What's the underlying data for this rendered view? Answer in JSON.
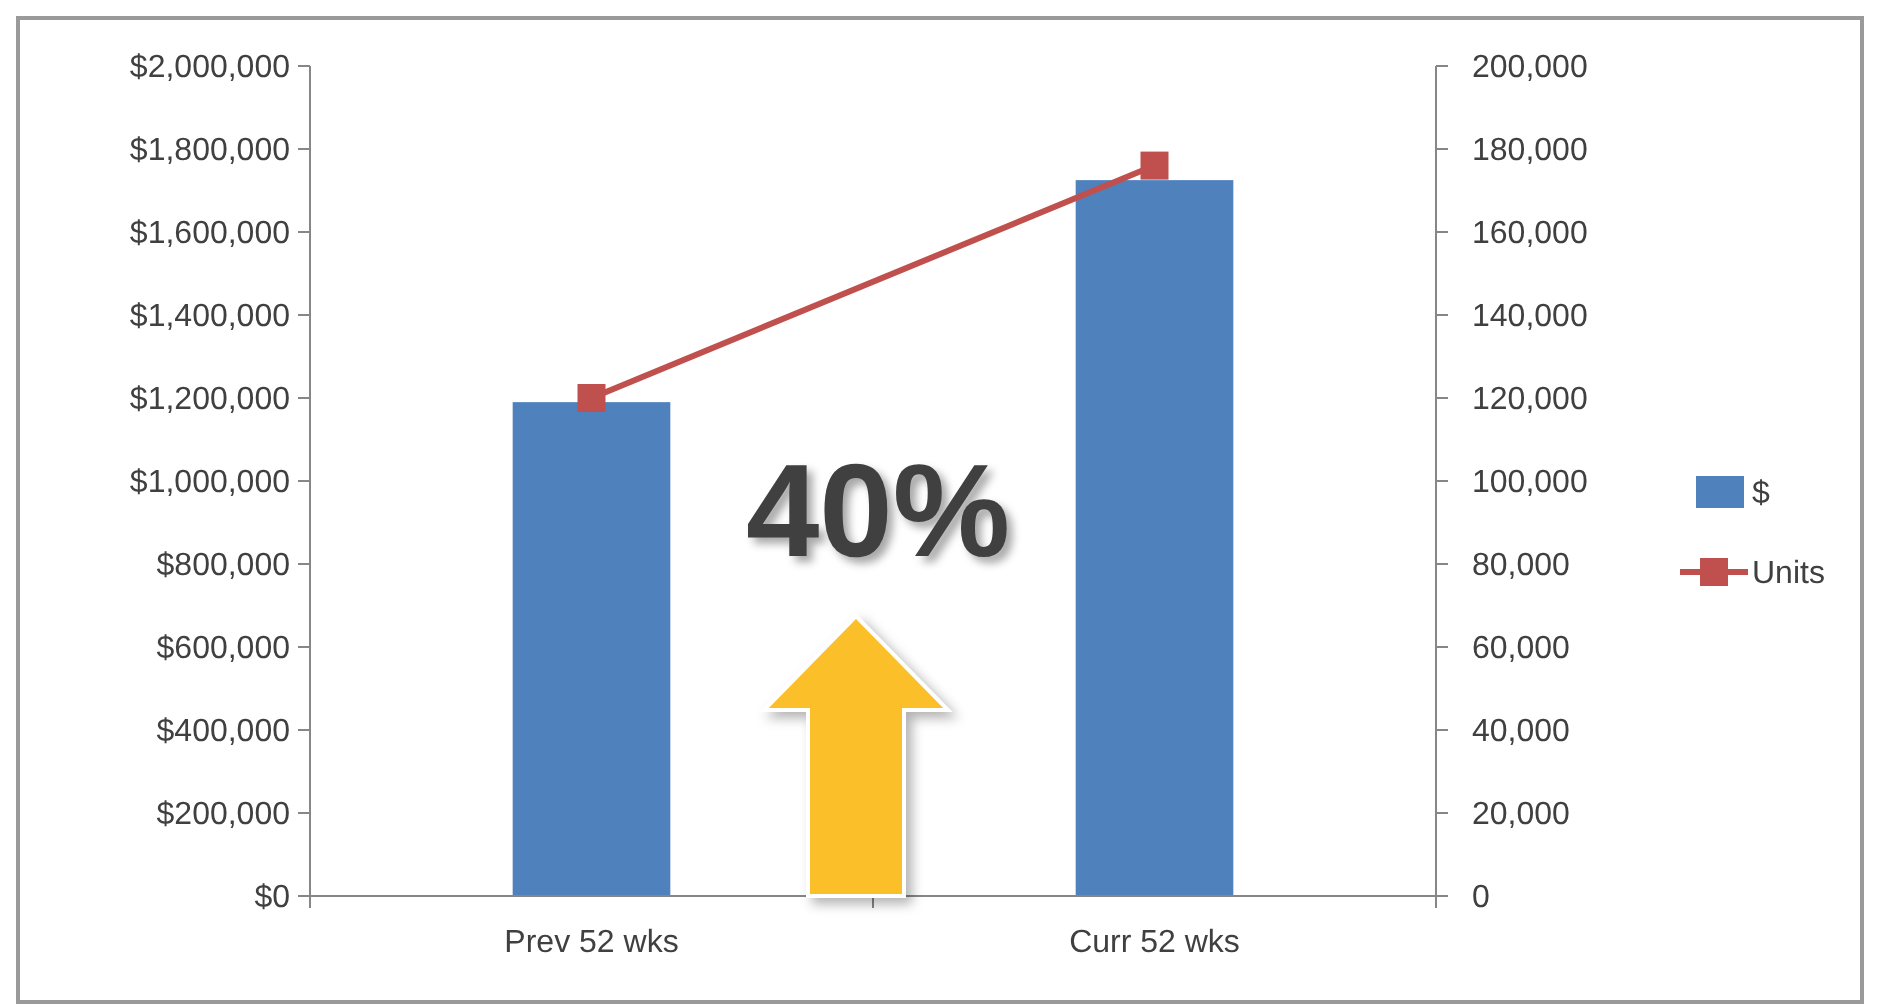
{
  "chart_data": {
    "type": "bar",
    "categories": [
      "Prev 52 wks",
      "Curr 52 wks"
    ],
    "series": [
      {
        "name": "$",
        "color": "#4f81bd",
        "values": [
          1190000,
          1725000
        ]
      },
      {
        "name": "Units",
        "type": "line",
        "axis": "y2",
        "color": "#c0504d",
        "values": [
          120000,
          176000
        ]
      }
    ],
    "ylim": [
      0,
      2000000
    ],
    "yticks": [
      {
        "value": 0,
        "label": "$0"
      },
      {
        "value": 200000,
        "label": "$200,000"
      },
      {
        "value": 400000,
        "label": "$400,000"
      },
      {
        "value": 600000,
        "label": "$600,000"
      },
      {
        "value": 800000,
        "label": "$800,000"
      },
      {
        "value": 1000000,
        "label": "$1,000,000"
      },
      {
        "value": 1200000,
        "label": "$1,200,000"
      },
      {
        "value": 1400000,
        "label": "$1,400,000"
      },
      {
        "value": 1600000,
        "label": "$1,600,000"
      },
      {
        "value": 1800000,
        "label": "$1,800,000"
      },
      {
        "value": 2000000,
        "label": "$2,000,000"
      }
    ],
    "y2lim": [
      0,
      200000
    ],
    "y2ticks": [
      0,
      {
        "value": 20000,
        "label": "20,000"
      },
      {
        "value": 40000,
        "label": "40,000"
      },
      {
        "value": 60000,
        "label": "60,000"
      },
      {
        "value": 80000,
        "label": "80,000"
      },
      {
        "value": 100000,
        "label": "100,000"
      },
      {
        "value": 120000,
        "label": "120,000"
      },
      {
        "value": 140000,
        "label": "140,000"
      },
      {
        "value": 160000,
        "label": "160,000"
      },
      {
        "value": 180000,
        "label": "180,000"
      },
      {
        "value": 200000,
        "label": "200,000"
      }
    ],
    "marker": "square",
    "legend": "right",
    "grid": false,
    "annotations": [
      "40%"
    ]
  }
}
